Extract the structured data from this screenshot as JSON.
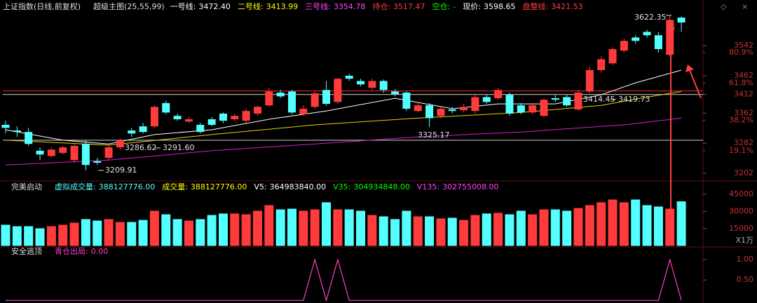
{
  "chart_data": [
    {
      "type": "candlestick",
      "title": "上证指数(日线,前复权)",
      "indicator": "超级主图(25,55,99)",
      "readouts": [
        {
          "label": "一号线:",
          "value": "3472.40",
          "color": "#ffffff"
        },
        {
          "label": "二号线:",
          "value": "3413.99",
          "color": "#ffff00"
        },
        {
          "label": "三号线:",
          "value": "3354.78",
          "color": "#ff44ff"
        },
        {
          "label": "持仓:",
          "value": "3517.47",
          "color": "#ff3b3b"
        },
        {
          "label": "空仓:",
          "value": "-",
          "color": "#00ff00"
        },
        {
          "label": "现价:",
          "value": "3598.65",
          "color": "#ffffff"
        },
        {
          "label": "盘整线:",
          "value": "3421.53",
          "color": "#ff3b3b"
        }
      ],
      "open": [
        3331,
        3316,
        3312,
        3262,
        3248,
        3256,
        3237,
        3280,
        3234,
        3243,
        3271,
        3316,
        3327,
        3327,
        3389,
        3355,
        3340,
        3331,
        3346,
        3361,
        3346,
        3342,
        3361,
        3383,
        3417,
        3420,
        3359,
        3379,
        3424,
        3392,
        3462,
        3448,
        3430,
        3448,
        3420,
        3417,
        3368,
        3383,
        3355,
        3372,
        3370,
        3368,
        3405,
        3402,
        3411,
        3383,
        3364,
        3355,
        3402,
        3405,
        3372,
        3420,
        3477,
        3495,
        3529,
        3564,
        3579,
        3570,
        3518,
        3617
      ],
      "close": [
        3323,
        3312,
        3280,
        3252,
        3265,
        3271,
        3275,
        3224,
        3230,
        3271,
        3290,
        3308,
        3312,
        3379,
        3364,
        3346,
        3346,
        3312,
        3331,
        3342,
        3355,
        3368,
        3379,
        3420,
        3407,
        3364,
        3374,
        3415,
        3387,
        3454,
        3454,
        3439,
        3448,
        3424,
        3413,
        3374,
        3383,
        3349,
        3374,
        3368,
        3379,
        3405,
        3392,
        3424,
        3361,
        3364,
        3383,
        3398,
        3398,
        3383,
        3417,
        3477,
        3506,
        3533,
        3555,
        3555,
        3570,
        3533,
        3611,
        3604
      ],
      "high": [
        3342,
        3327,
        3323,
        3271,
        3271,
        3275,
        3280,
        3290,
        3243,
        3275,
        3295,
        3323,
        3336,
        3383,
        3395,
        3361,
        3352,
        3336,
        3352,
        3364,
        3361,
        3374,
        3383,
        3430,
        3424,
        3424,
        3383,
        3420,
        3448,
        3458,
        3467,
        3454,
        3454,
        3452,
        3426,
        3420,
        3389,
        3389,
        3379,
        3379,
        3387,
        3411,
        3411,
        3430,
        3417,
        3389,
        3389,
        3402,
        3411,
        3411,
        3424,
        3486,
        3514,
        3538,
        3561,
        3570,
        3585,
        3579,
        3622.35,
        3620
      ],
      "low": [
        3308,
        3299,
        3275,
        3237,
        3243,
        3252,
        3230,
        3209.91,
        3224,
        3237,
        3265,
        3299,
        3308,
        3323,
        3359,
        3342,
        3336,
        3308,
        3327,
        3336,
        3340,
        3336,
        3355,
        3379,
        3402,
        3359,
        3355,
        3374,
        3383,
        3387,
        3448,
        3434,
        3424,
        3417,
        3407,
        3368,
        3364,
        3325.17,
        3349,
        3361,
        3364,
        3361,
        3387,
        3398,
        3355,
        3359,
        3359,
        3352,
        3392,
        3379,
        3368,
        3415,
        3470,
        3490,
        3524,
        3548,
        3564,
        3524,
        3514,
        3579
      ],
      "up_color": "#ff3b3b",
      "down_color": "#54ffff",
      "ylim": [
        3187,
        3649
      ],
      "yticks": [
        3202,
        3282,
        3362,
        3412,
        3462,
        3542
      ],
      "y2lim": [
        1.3,
        110.6
      ],
      "y2ticks": [
        {
          "value": 19.1,
          "label": "19.1%"
        },
        {
          "value": 38.2,
          "label": "38.2%"
        },
        {
          "value": 61.8,
          "label": "61.8%"
        },
        {
          "value": 80.9,
          "label": "80.9%"
        }
      ],
      "hlines": [
        {
          "value": 3421.53,
          "color": "#c81e1e"
        },
        {
          "value": 3412,
          "color": "#bbbbbb"
        },
        {
          "value": 3290,
          "color": "#bbbbbb"
        }
      ],
      "lines": [
        {
          "color": "#ffffff",
          "x": [
            0,
            5,
            9,
            13,
            18,
            23,
            28,
            34,
            39,
            43,
            48,
            52,
            55,
            59
          ],
          "values": [
            3318,
            3290,
            3280,
            3305,
            3318,
            3346,
            3368,
            3402,
            3374,
            3387,
            3387,
            3411,
            3443,
            3477
          ]
        },
        {
          "color": "#e6d200",
          "x": [
            0,
            9,
            18,
            27,
            36,
            45,
            52,
            56,
            59
          ],
          "values": [
            3290,
            3277,
            3305,
            3331,
            3349,
            3364,
            3383,
            3405,
            3420
          ]
        },
        {
          "color": "#d020d0",
          "x": [
            0,
            9,
            18,
            27,
            36,
            45,
            54,
            59
          ],
          "values": [
            3224,
            3237,
            3262,
            3280,
            3299,
            3312,
            3331,
            3349
          ]
        }
      ],
      "annotations": [
        "3622.35",
        "3325.17",
        "3286.62",
        "3291.60",
        "3414.45",
        "3419.73",
        "3209.91"
      ]
    },
    {
      "type": "bar",
      "title": "完美启动",
      "readouts": [
        {
          "label": "虚拟成交量:",
          "value": "388127776.00",
          "color": "#54ffff"
        },
        {
          "label": "成交量:",
          "value": "388127776.00",
          "color": "#ffff00"
        },
        {
          "label": "V5:",
          "value": "364983840.00",
          "color": "#ffffff"
        },
        {
          "label": "V35:",
          "value": "304934848.00",
          "color": "#00ff00"
        },
        {
          "label": "V135:",
          "value": "302755008.00",
          "color": "#ff44ff"
        }
      ],
      "values": [
        18400,
        17100,
        17100,
        15300,
        17100,
        18400,
        20200,
        23300,
        22000,
        23300,
        20800,
        20800,
        22600,
        30600,
        27500,
        23300,
        22000,
        23300,
        26900,
        28200,
        28200,
        27500,
        30600,
        35500,
        31800,
        32400,
        30600,
        31800,
        38000,
        31800,
        31800,
        30600,
        26900,
        25700,
        23300,
        30600,
        25700,
        25700,
        23900,
        24500,
        22600,
        26900,
        28200,
        28800,
        27500,
        30600,
        27500,
        31800,
        31800,
        30600,
        33000,
        35500,
        38000,
        40400,
        38000,
        40400,
        35500,
        34300,
        32400,
        38813
      ],
      "ylim": [
        0,
        50500
      ],
      "yticks": [
        15000,
        30000,
        45000
      ],
      "unit": "X1万"
    },
    {
      "type": "line",
      "title": "安全逃顶",
      "readouts": [
        {
          "label": "青仓出局:",
          "value": "0.00",
          "color": "#ff3cc8"
        }
      ],
      "values": [
        0,
        0,
        0,
        0,
        0,
        0,
        0,
        0,
        0,
        0,
        0,
        0,
        0,
        0,
        0,
        0,
        0,
        0,
        0,
        0,
        0,
        0,
        0,
        0,
        0,
        0,
        0,
        1,
        0,
        1,
        0,
        0,
        0,
        0,
        0,
        0,
        0,
        0,
        0,
        0,
        0,
        0,
        0,
        0,
        0,
        0,
        0,
        0,
        0,
        0,
        0,
        0,
        0,
        0,
        0,
        0,
        0,
        0,
        1,
        0
      ],
      "color": "#ff3cc8",
      "ylim": [
        -0.03,
        1.14
      ],
      "yticks": [
        {
          "value": 0.5,
          "label": "0.50"
        },
        {
          "value": 1,
          "label": "1.00"
        }
      ]
    }
  ]
}
